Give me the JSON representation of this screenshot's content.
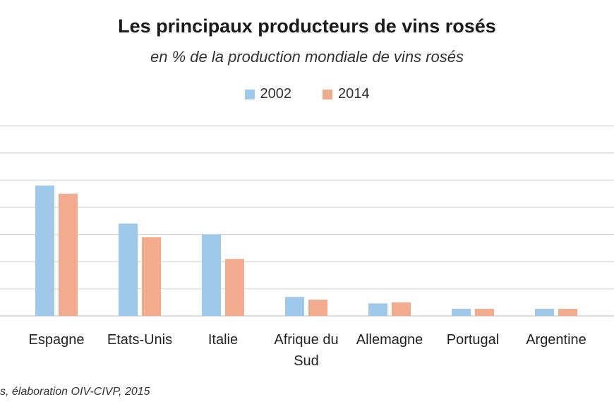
{
  "title": "Les principaux producteurs de vins rosés",
  "subtitle": "en % de la production mondiale de vins rosés",
  "source": "s, élaboration OIV-CIVP, 2015",
  "colors": {
    "s2002": "#9fc9ea",
    "s2014": "#f2ab8d",
    "grid": "#dddddd"
  },
  "chart_data": {
    "type": "bar",
    "categories": [
      "Espagne",
      "Etats-Unis",
      "Italie",
      "Afrique du Sud",
      "Allemagne",
      "Portugal",
      "Argentine"
    ],
    "series": [
      {
        "name": "2002",
        "values": [
          24,
          17,
          15,
          3.5,
          2.3,
          1.3,
          1.3
        ]
      },
      {
        "name": "2014",
        "values": [
          22.5,
          14.5,
          10.5,
          3,
          2.5,
          1.3,
          1.3
        ]
      }
    ],
    "ylim": [
      0,
      35
    ],
    "grid": true,
    "legend": "top-center"
  }
}
